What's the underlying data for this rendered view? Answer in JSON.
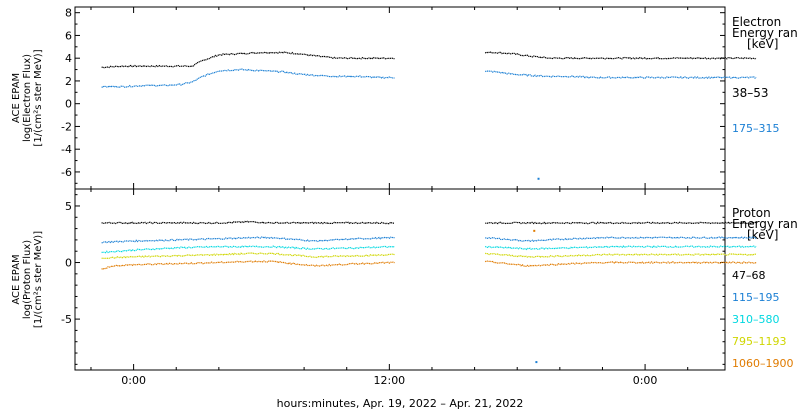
{
  "chart_data": [
    {
      "type": "line",
      "ylabel": [
        "ACE EPAM",
        "log(Electron Flux)",
        "[1/(cm²s ster MeV)]"
      ],
      "ylim": [
        -7.5,
        8.5
      ],
      "yticks": [
        -6,
        -4,
        -2,
        0,
        2,
        4,
        6,
        8
      ],
      "legend_title": [
        "Electron",
        "Energy ran",
        "[keV]"
      ],
      "legend_placement": "right",
      "series": [
        {
          "name": "38–53",
          "color": "#000000",
          "x": [
            -3,
            -1,
            1,
            3,
            4.5,
            5.5,
            6.5,
            8,
            10,
            12,
            14,
            15.5,
            17,
            19,
            21,
            23,
            24.5
          ],
          "y": [
            3.2,
            3.3,
            3.3,
            3.3,
            3.3,
            3.3,
            3.8,
            4.3,
            4.4,
            4.5,
            4.5,
            4.4,
            4.2,
            4.0,
            4.0,
            4.0,
            4.0
          ]
        },
        {
          "name": "175–315",
          "color": "#1a7fd4",
          "x": [
            -3,
            -1,
            1,
            3,
            4.5,
            5.5,
            6.5,
            8,
            10,
            12,
            14,
            15.5,
            17,
            19,
            21,
            23,
            24.5
          ],
          "y": [
            1.5,
            1.5,
            1.6,
            1.6,
            1.7,
            1.9,
            2.4,
            2.9,
            3.0,
            2.9,
            2.8,
            2.6,
            2.5,
            2.4,
            2.4,
            2.3,
            2.3
          ]
        }
      ]
    },
    {
      "type": "line",
      "ylabel": [
        "ACE EPAM",
        "log(Proton Flux)",
        "[1/(cm²s ster MeV)]"
      ],
      "ylim": [
        -9.5,
        6.5
      ],
      "yticks": [
        -5,
        0,
        5
      ],
      "legend_title": [
        "Proton",
        "Energy ran",
        "[keV]"
      ],
      "legend_placement": "right",
      "series": [
        {
          "name": "47–68",
          "color": "#000000",
          "x": [
            -3,
            0,
            4,
            8,
            11,
            13,
            17,
            21,
            24.5
          ],
          "y": [
            3.5,
            3.5,
            3.5,
            3.5,
            3.6,
            3.5,
            3.5,
            3.5,
            3.5
          ]
        },
        {
          "name": "115–195",
          "color": "#1a7fd4",
          "x": [
            -3,
            0,
            4,
            8,
            11,
            13,
            17,
            21,
            24.5
          ],
          "y": [
            1.8,
            1.9,
            2.0,
            2.1,
            2.2,
            2.2,
            1.9,
            2.1,
            2.2
          ]
        },
        {
          "name": "310–580",
          "color": "#00d8e0",
          "x": [
            -3,
            0,
            4,
            8,
            11,
            13,
            17,
            21,
            24.5
          ],
          "y": [
            0.9,
            1.1,
            1.3,
            1.4,
            1.4,
            1.4,
            1.2,
            1.3,
            1.4
          ]
        },
        {
          "name": "795–1193",
          "color": "#cfd600",
          "x": [
            -3,
            0,
            4,
            8,
            11,
            13,
            17,
            21,
            24.5
          ],
          "y": [
            0.4,
            0.5,
            0.6,
            0.7,
            0.8,
            0.8,
            0.5,
            0.6,
            0.7
          ]
        },
        {
          "name": "1060–1900",
          "color": "#e07b00",
          "x": [
            -3,
            -2,
            0,
            4,
            8,
            11,
            13,
            17,
            21,
            24.5
          ],
          "y": [
            -0.6,
            -0.3,
            -0.2,
            -0.1,
            0.0,
            0.1,
            0.1,
            -0.3,
            -0.1,
            0.0
          ]
        }
      ]
    }
  ],
  "x_axis": {
    "label": "hours:minutes, Apr. 19, 2022 – Apr. 21, 2022",
    "xlim": [
      -5.5,
      55.5
    ],
    "ticks": [
      0,
      24,
      48
    ],
    "minor_ticks": [
      -4,
      4,
      8,
      16,
      20,
      28,
      32,
      36,
      40,
      44,
      52
    ],
    "tick_labels": [
      "0:00",
      "12:00",
      "0:00"
    ],
    "data_segments": [
      [
        -3,
        24.5
      ],
      [
        33,
        58.5
      ]
    ],
    "segment_two_offset_hours": 32
  },
  "annotations": {
    "gap": "data gap between ~24.5 and ~33 hours",
    "outlier_points": [
      {
        "panel": 0,
        "x": 38,
        "y": -6.6,
        "color": "#1a7fd4"
      },
      {
        "panel": 1,
        "x": 37.8,
        "y": -8.8,
        "color": "#1a7fd4"
      },
      {
        "panel": 1,
        "x": 37.6,
        "y": 2.8,
        "color": "#e07b00"
      }
    ]
  }
}
